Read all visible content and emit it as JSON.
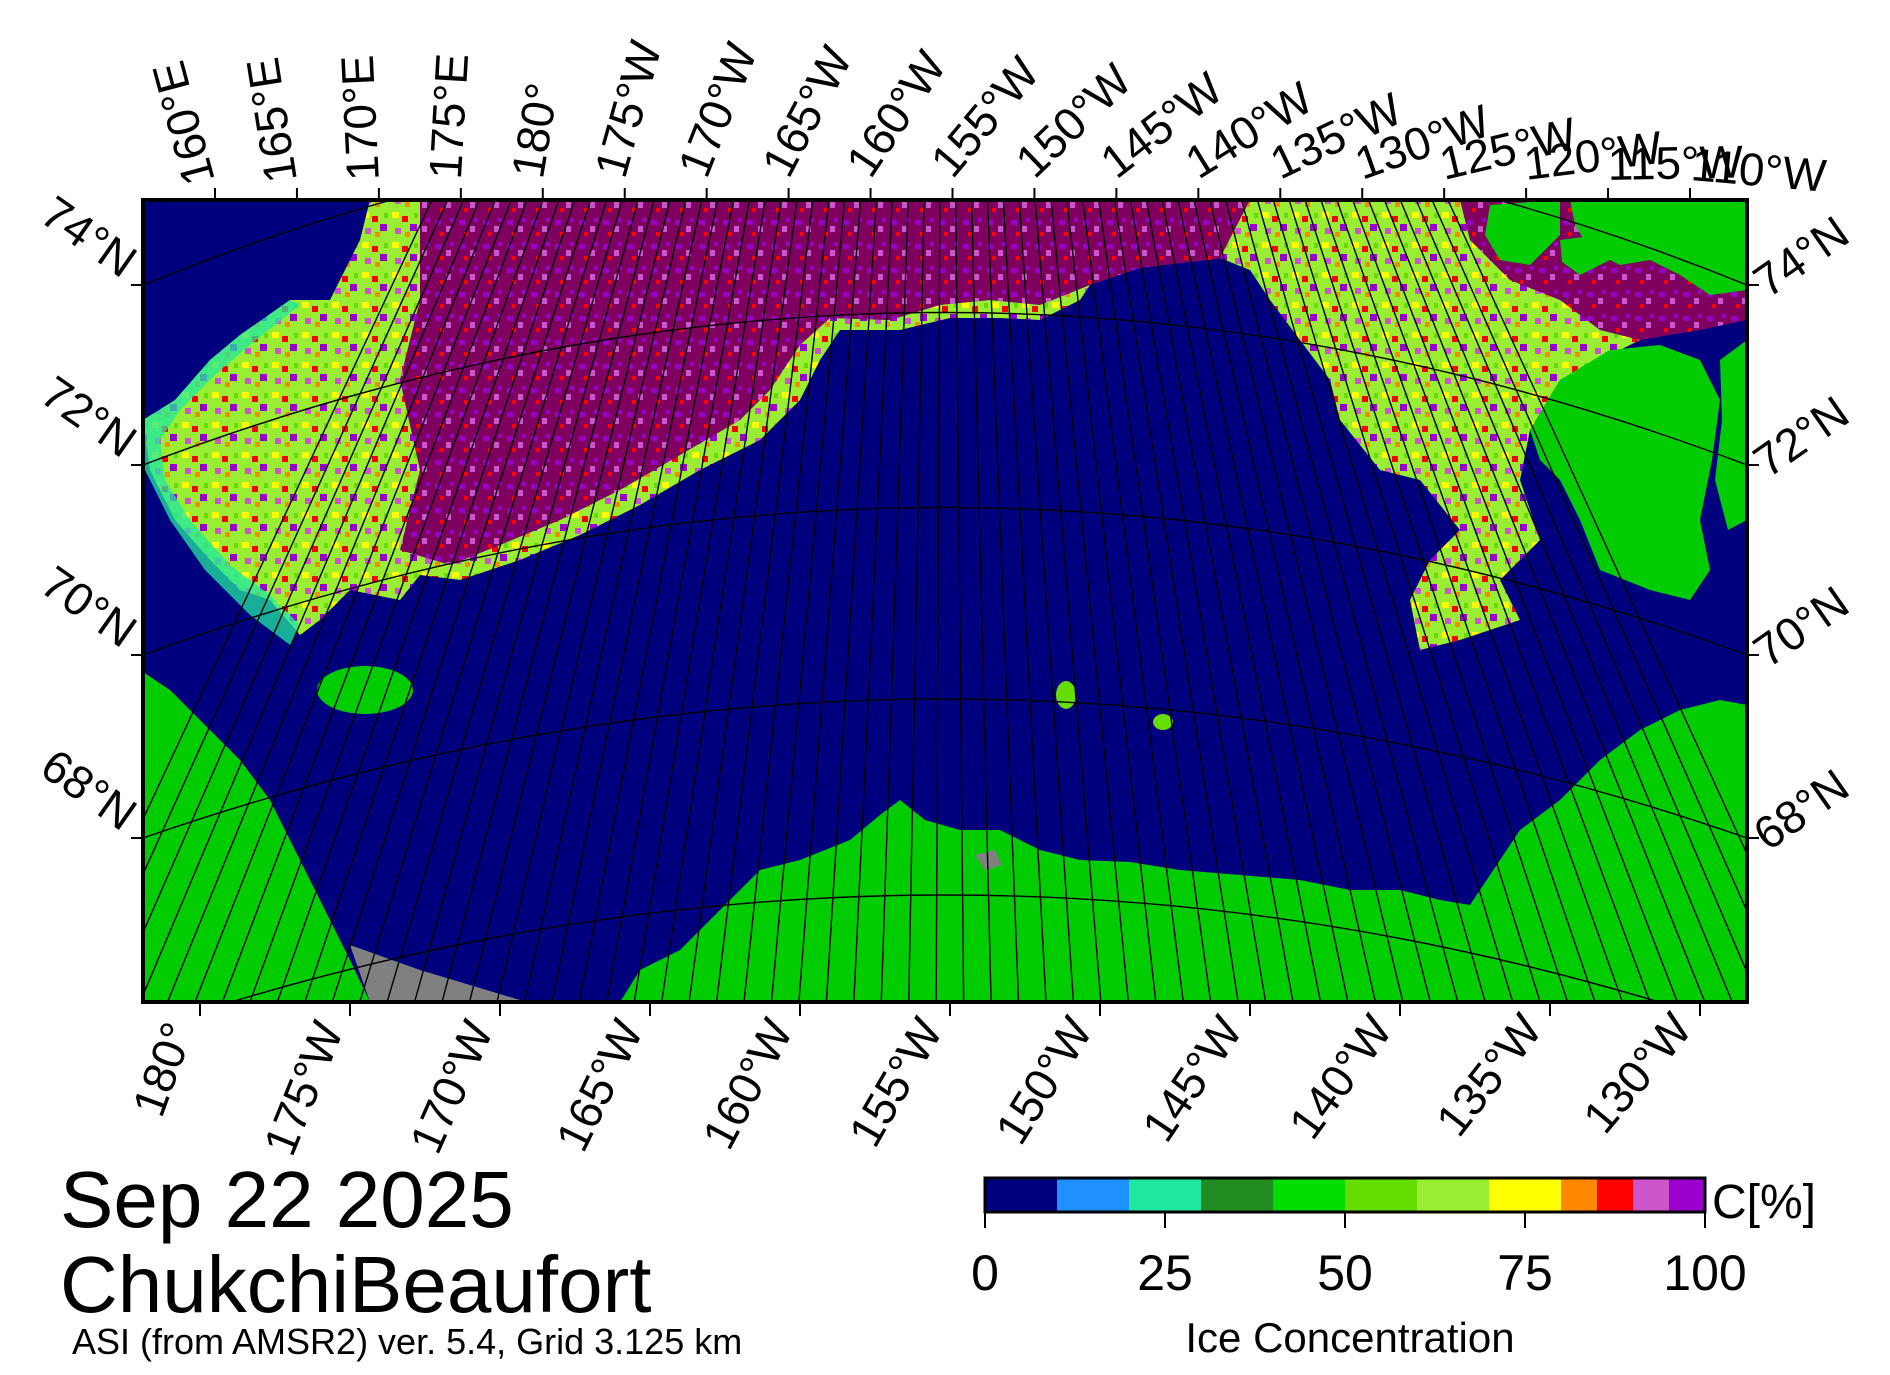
{
  "map": {
    "date": "Sep 22 2025",
    "region": "ChukchiBeaufort",
    "product": "ASI (from AMSR2) ver. 5.4,  Grid 3.125 km",
    "top_lon_labels": [
      "160°E",
      "165°E",
      "170°E",
      "175°E",
      "180°",
      "175°W",
      "170°W",
      "165°W",
      "160°W",
      "155°W",
      "150°W",
      "145°W",
      "140°W",
      "135°W",
      "130°W",
      "125°W",
      "120°W",
      "115°W",
      "110°W"
    ],
    "bottom_lon_labels": [
      "180°",
      "175°W",
      "170°W",
      "165°W",
      "160°W",
      "155°W",
      "150°W",
      "145°W",
      "140°W",
      "135°W",
      "130°W"
    ],
    "left_lat_labels": [
      "74°N",
      "72°N",
      "70°N",
      "68°N"
    ],
    "right_lat_labels": [
      "74°N",
      "72°N",
      "70°N",
      "68°N"
    ],
    "colors": {
      "open_water": "#00007f",
      "land": "#00cc00",
      "missing": "#808080",
      "pack_ice": "#800060"
    }
  },
  "colorbar": {
    "title": "Ice Concentration",
    "unit": "C[%]",
    "ticks": [
      "0",
      "25",
      "50",
      "75",
      "100"
    ],
    "bins": [
      {
        "from": 0,
        "to": 10,
        "color": "#00007f"
      },
      {
        "from": 10,
        "to": 20,
        "color": "#1e90ff"
      },
      {
        "from": 20,
        "to": 30,
        "color": "#20e8a0"
      },
      {
        "from": 30,
        "to": 40,
        "color": "#228b22"
      },
      {
        "from": 40,
        "to": 50,
        "color": "#00dd00"
      },
      {
        "from": 50,
        "to": 60,
        "color": "#66dd00"
      },
      {
        "from": 60,
        "to": 70,
        "color": "#99ee33"
      },
      {
        "from": 70,
        "to": 80,
        "color": "#ffff00"
      },
      {
        "from": 80,
        "to": 85,
        "color": "#ff8800"
      },
      {
        "from": 85,
        "to": 90,
        "color": "#ff0000"
      },
      {
        "from": 90,
        "to": 95,
        "color": "#cc55cc"
      },
      {
        "from": 95,
        "to": 100,
        "color": "#9900cc"
      }
    ]
  }
}
